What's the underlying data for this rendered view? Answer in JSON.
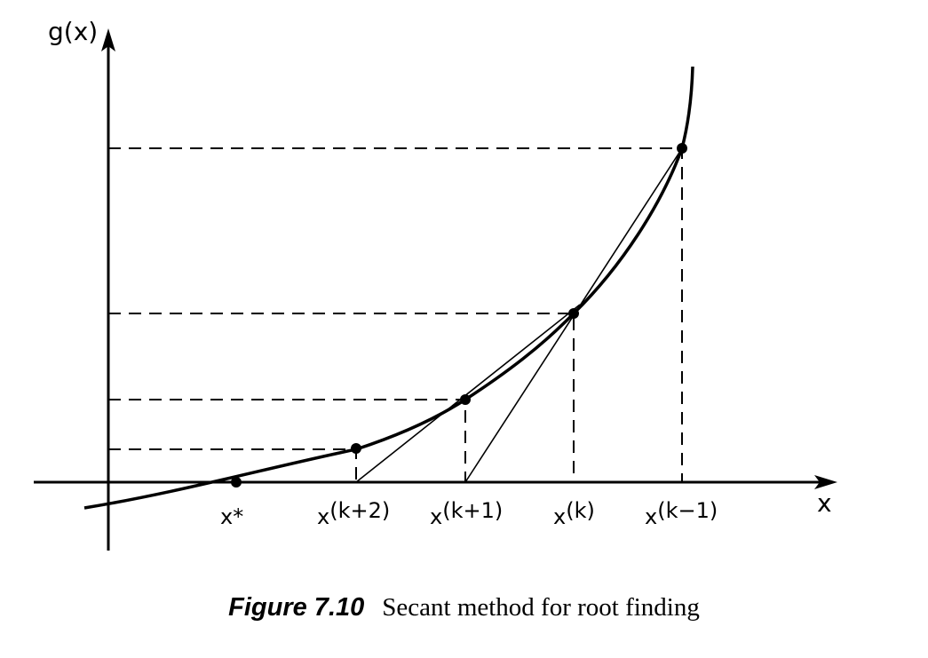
{
  "diagram": {
    "y_axis_label": "g(x)",
    "x_axis_label": "x",
    "points": [
      {
        "id": "root",
        "label": "x*"
      },
      {
        "id": "k2",
        "label": "x(k+2)",
        "base": "x",
        "sup": "(k+2)"
      },
      {
        "id": "k1",
        "label": "x(k+1)",
        "base": "x",
        "sup": "(k+1)"
      },
      {
        "id": "k",
        "label": "x(k)",
        "base": "x",
        "sup": "(k)"
      },
      {
        "id": "km1",
        "label": "x(k-1)",
        "base": "x",
        "sup": "(k−1)"
      }
    ]
  },
  "caption": {
    "number": "Figure 7.10",
    "text": "Secant method for root finding"
  }
}
